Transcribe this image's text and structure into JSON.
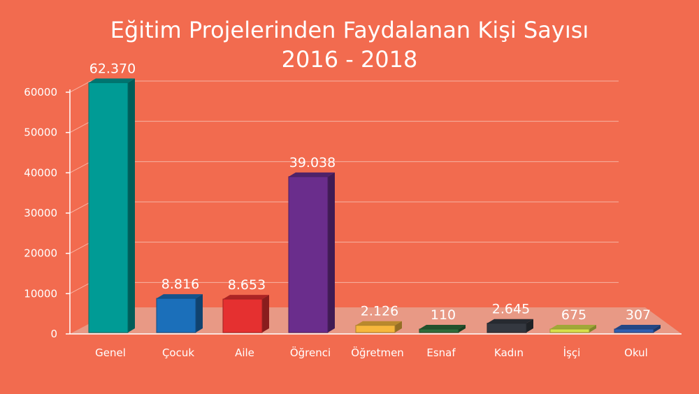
{
  "title": "Eğitim Projelerinden Faydalanan Kişi Sayısı",
  "subtitle": "2016 - 2018",
  "colors": {
    "background": "#f26b4f",
    "floor": "#e89a86",
    "axis": "#ffffff",
    "grid": "#f7b3a3"
  },
  "chart_data": {
    "type": "bar",
    "title": "Eğitim Projelerinden Faydalanan Kişi Sayısı",
    "subtitle": "2016 - 2018",
    "xlabel": "",
    "ylabel": "",
    "ylim": [
      0,
      60000
    ],
    "yticks": [
      "0",
      "10000",
      "20000",
      "30000",
      "40000",
      "50000",
      "60000"
    ],
    "grid": true,
    "categories": [
      "Genel",
      "Çocuk",
      "Aile",
      "Öğrenci",
      "Öğretmen",
      "Esnaf",
      "Kadın",
      "İşçi",
      "Okul"
    ],
    "values": [
      62370,
      8816,
      8653,
      39038,
      2126,
      110,
      2645,
      675,
      307
    ],
    "data_labels": [
      "62.370",
      "8.816",
      "8.653",
      "39.038",
      "2.126",
      "110",
      "2.645",
      "675",
      "307"
    ],
    "bar_colors": [
      "#009b95",
      "#1b6fba",
      "#e53030",
      "#6a2d8c",
      "#f6b73c",
      "#2f6c3a",
      "#343840",
      "#d7e04a",
      "#2f5fb1"
    ]
  }
}
